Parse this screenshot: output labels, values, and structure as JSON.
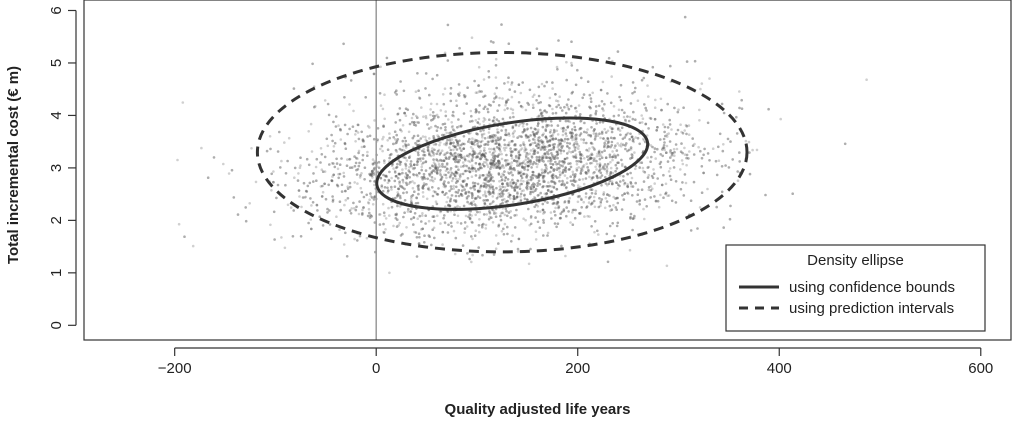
{
  "chart_data": {
    "type": "scatter",
    "title": "",
    "xlabel": "Quality adjusted life years",
    "ylabel": "Total incremental cost (€ m)",
    "xlim": [
      -290,
      630
    ],
    "ylim": [
      -0.28,
      6.2
    ],
    "x_ticks": [
      -200,
      0,
      200,
      400,
      600
    ],
    "y_ticks": [
      0,
      1,
      2,
      3,
      4,
      5,
      6
    ],
    "x_tick_labels": [
      "−200",
      "0",
      "200",
      "400",
      "600"
    ],
    "y_tick_labels": [
      "0",
      "1",
      "2",
      "3",
      "4",
      "5",
      "6"
    ],
    "reference_line_x": 0,
    "grid": false,
    "point_cloud": {
      "description_center": [
        125,
        3.0
      ],
      "approx_x_range": [
        -230,
        545
      ],
      "approx_y_range": [
        1.0,
        6.2
      ],
      "color": "#555555"
    },
    "ellipses": [
      {
        "name": "using confidence bounds",
        "style": "solid",
        "center": [
          135,
          3.08
        ],
        "semi_axes": [
          136,
          0.78
        ],
        "rotation_deg": 9
      },
      {
        "name": "using prediction intervals",
        "style": "dashed",
        "center": [
          125,
          3.3
        ],
        "semi_axes": [
          243,
          1.9
        ],
        "rotation_deg": 0
      }
    ],
    "legend": {
      "title": "Density ellipse",
      "placement": "bottom-right",
      "entries": [
        {
          "label": "using confidence bounds",
          "style": "solid"
        },
        {
          "label": "using prediction intervals",
          "style": "dashed"
        }
      ]
    }
  }
}
